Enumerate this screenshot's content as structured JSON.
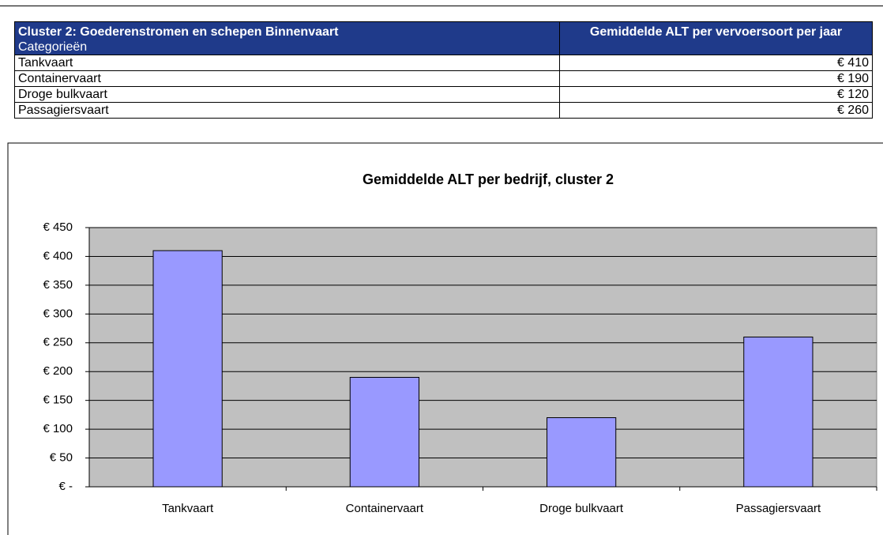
{
  "table": {
    "header": {
      "title": "Cluster 2: Goederenstromen en schepen Binnenvaart",
      "subtitle": "Categorieën",
      "value_column": "Gemiddelde ALT per vervoersoort per jaar"
    },
    "rows": [
      [
        "Tankvaart",
        "€ 410"
      ],
      [
        "Containervaart",
        "€ 190"
      ],
      [
        "Droge bulkvaart",
        "€ 120"
      ],
      [
        "Passagiersvaart",
        "€ 260"
      ]
    ]
  },
  "chart_data": {
    "type": "bar",
    "title": "Gemiddelde ALT per bedrijf, cluster 2",
    "categories": [
      "Tankvaart",
      "Containervaart",
      "Droge bulkvaart",
      "Passagiersvaart"
    ],
    "values": [
      410,
      190,
      120,
      260
    ],
    "color": "#9999ff",
    "ylim": [
      0,
      450
    ],
    "yticks": [
      {
        "value": 0,
        "label": "€ -"
      },
      {
        "value": 50,
        "label": "€ 50"
      },
      {
        "value": 100,
        "label": "€ 100"
      },
      {
        "value": 150,
        "label": "€ 150"
      },
      {
        "value": 200,
        "label": "€ 200"
      },
      {
        "value": 250,
        "label": "€ 250"
      },
      {
        "value": 300,
        "label": "€ 300"
      },
      {
        "value": 350,
        "label": "€ 350"
      },
      {
        "value": 400,
        "label": "€ 400"
      },
      {
        "value": 450,
        "label": "€ 450"
      }
    ],
    "grid": true
  }
}
